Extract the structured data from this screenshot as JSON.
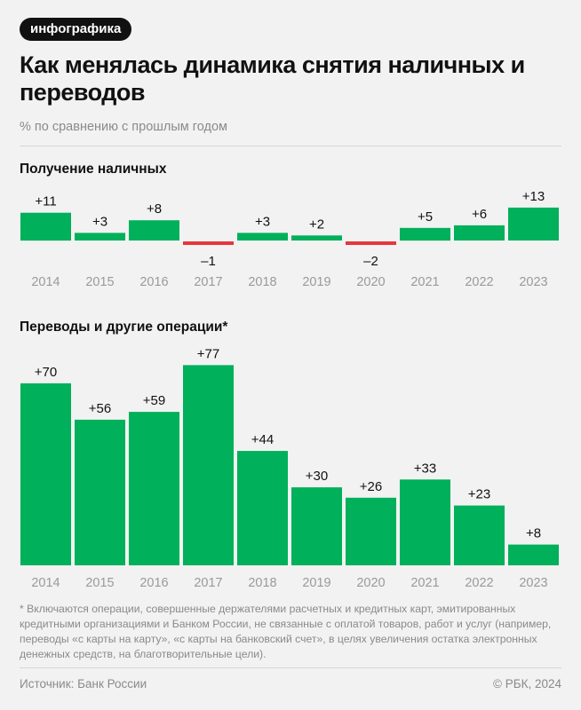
{
  "badge": "инфографика",
  "title": "Как менялась динамика снятия наличных и переводов",
  "subtitle": "% по сравнению с прошлым годом",
  "colors": {
    "positive": "#00b05a",
    "negative": "#e5373c",
    "label": "#111111",
    "axis": "#9a9a9a"
  },
  "chart_data": [
    {
      "type": "bar",
      "title": "Получение наличных",
      "categories": [
        "2014",
        "2015",
        "2016",
        "2017",
        "2018",
        "2019",
        "2020",
        "2021",
        "2022",
        "2023"
      ],
      "values": [
        11,
        3,
        8,
        -1,
        3,
        2,
        -2,
        5,
        6,
        13
      ],
      "labels": [
        "+11",
        "+3",
        "+8",
        "–1",
        "+3",
        "+2",
        "–2",
        "+5",
        "+6",
        "+13"
      ],
      "xlabel": "",
      "ylabel": ""
    },
    {
      "type": "bar",
      "title": "Переводы и другие операции*",
      "categories": [
        "2014",
        "2015",
        "2016",
        "2017",
        "2018",
        "2019",
        "2020",
        "2021",
        "2022",
        "2023"
      ],
      "values": [
        70,
        56,
        59,
        77,
        44,
        30,
        26,
        33,
        23,
        8
      ],
      "labels": [
        "+70",
        "+56",
        "+59",
        "+77",
        "+44",
        "+30",
        "+26",
        "+33",
        "+23",
        "+8"
      ],
      "xlabel": "",
      "ylabel": ""
    }
  ],
  "footnote": "* Включаются операции, совершенные держателями расчетных и кредитных карт, эмитированных кредитными организациями и Банком России, не связанные с оплатой товаров, работ и услуг (например, переводы «с карты на карту», «с карты на банковский счет», в целях увеличения остатка электронных денежных средств, на благотворительные цели).",
  "source": "Источник: Банк России",
  "copyright": "© РБК, 2024"
}
